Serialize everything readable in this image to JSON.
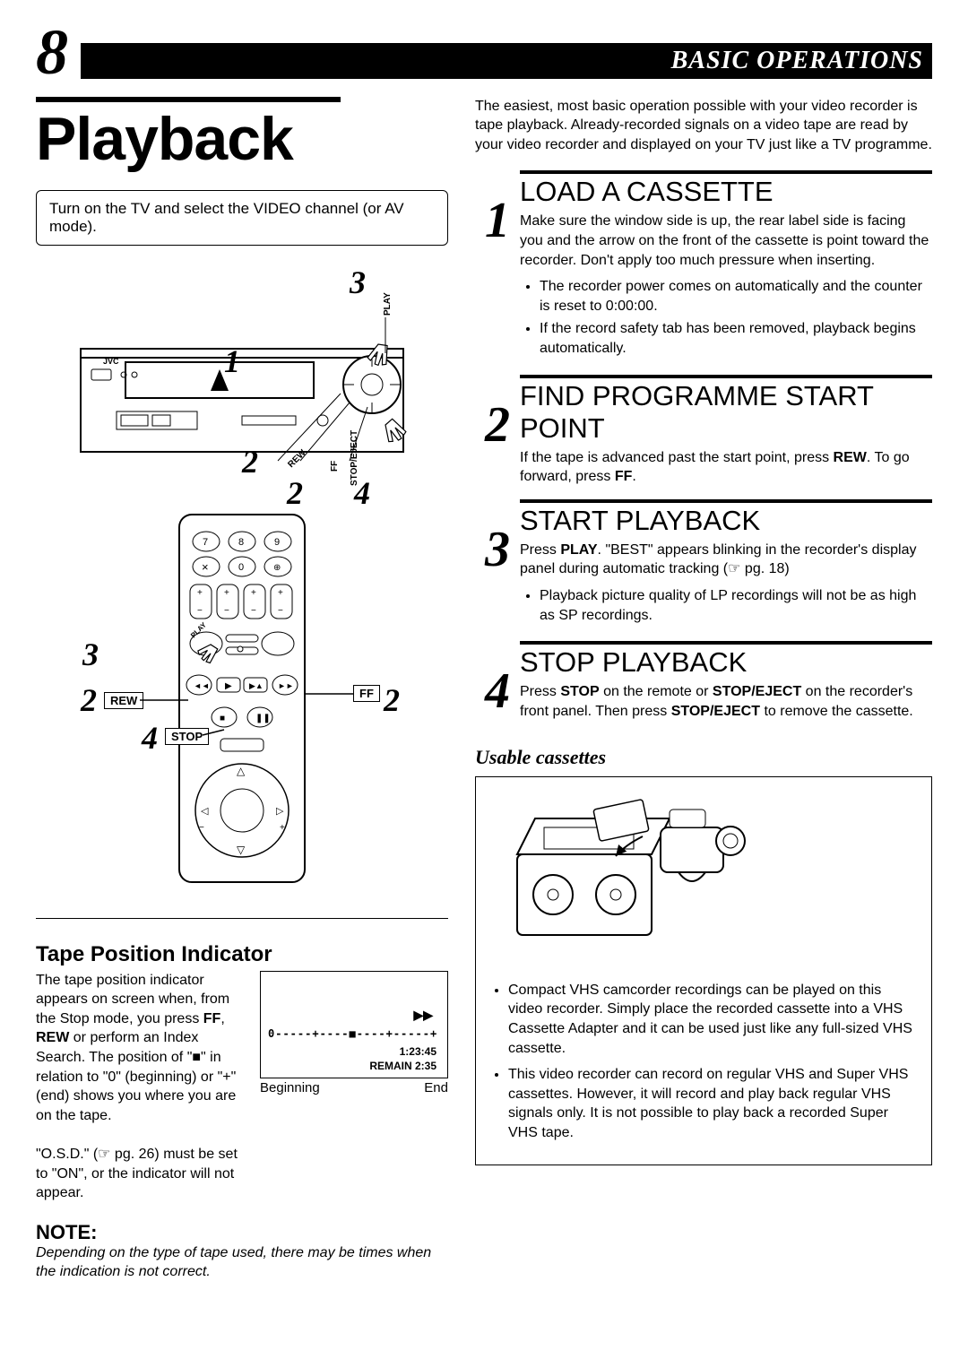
{
  "page_number": "8",
  "header": "BASIC OPERATIONS",
  "title": "Playback",
  "info_box": "Turn on the TV and select the VIDEO channel (or AV mode).",
  "intro": "The easiest, most basic operation possible with your video recorder is tape playback. Already-recorded signals on a video tape are read by your video recorder and displayed on your TV just like a TV programme.",
  "vcr_callouts": {
    "c1": "1",
    "c2a": "2",
    "c2b": "2",
    "c3": "3",
    "c4": "4"
  },
  "vcr_labels": {
    "play": "PLAY",
    "rew": "REW",
    "ff": "FF",
    "stop": "STOP/EJECT",
    "brand": "JVC"
  },
  "remote_callouts": {
    "c2l": "2",
    "c2r": "2",
    "c3": "3",
    "c4": "4"
  },
  "remote_labels": {
    "rew": "REW",
    "ff": "FF",
    "stop": "STOP",
    "play": "PLAY"
  },
  "steps": [
    {
      "num": "1",
      "title": "LOAD A CASSETTE",
      "desc": "Make sure the window side is up, the rear label side is facing you and the arrow on the front of the cassette is point toward the recorder. Don't apply too much pressure when inserting.",
      "bullets": [
        "The recorder power comes on automatically and the counter is reset to 0:00:00.",
        "If the record safety tab has been removed, playback begins automatically."
      ]
    },
    {
      "num": "2",
      "title": "FIND PROGRAMME START POINT",
      "desc_html": "If the tape is advanced past the start point, press <b>REW</b>. To go forward, press <b>FF</b>."
    },
    {
      "num": "3",
      "title": "START PLAYBACK",
      "desc_html": "Press <b>PLAY</b>. \"BEST\" appears blinking in the recorder's display panel during automatic tracking (☞ pg. 18)",
      "bullets": [
        "Playback picture quality of LP recordings will not be as high as SP recordings."
      ]
    },
    {
      "num": "4",
      "title": "STOP PLAYBACK",
      "desc_html": "Press <b>STOP</b> on the remote or <b>STOP/EJECT</b> on the recorder's front panel. Then press <b>STOP/EJECT</b> to remove the cassette."
    }
  ],
  "usable_title": "Usable cassettes",
  "usable_bullets": [
    "Compact VHS camcorder recordings can be played on this video recorder. Simply place the recorded cassette into a VHS Cassette Adapter and it can be used just like any full-sized VHS cassette.",
    "This video recorder can record on regular VHS and Super VHS cassettes. However, it will record and play back regular VHS signals only. It is not possible to play back a recorded Super VHS tape."
  ],
  "tpi": {
    "title": "Tape Position Indicator",
    "text1": "The tape position indicator appears on screen when, from the Stop mode, you press <b>FF</b>, <b>REW</b> or perform an Index Search. The position of \"■\" in relation to \"0\" (beginning) or \"+\" (end) shows you where you are on the tape.",
    "text2": "\"O.S.D.\" (☞ pg. 26) must be set to \"ON\", or the indicator will not appear.",
    "beginning": "Beginning",
    "end": "End",
    "counter": "1:23:45",
    "remain": "REMAIN 2:35",
    "zero": "0"
  },
  "note_title": "NOTE:",
  "note_text": "Depending on the type of tape used, there may be times when the indication is not correct.",
  "colors": {
    "bg": "#ffffff",
    "text": "#000000",
    "header_bg": "#000000"
  }
}
